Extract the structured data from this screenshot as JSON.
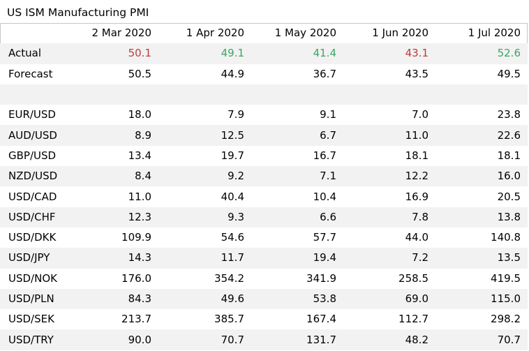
{
  "title": "US ISM Manufacturing PMI",
  "colors": {
    "beat": "#3aa565",
    "miss": "#c0393b",
    "stripe": "#f2f2f2",
    "border": "#c6c6c6"
  },
  "columns": [
    "",
    "2 Mar 2020",
    "1 Apr 2020",
    "1 May 2020",
    "1 Jun 2020",
    "1 Jul 2020"
  ],
  "actual": {
    "label": "Actual",
    "values": [
      "50.1",
      "49.1",
      "41.4",
      "43.1",
      "52.6"
    ],
    "status": [
      "miss",
      "beat",
      "beat",
      "miss",
      "beat"
    ]
  },
  "forecast": {
    "label": "Forecast",
    "values": [
      "50.5",
      "44.9",
      "36.7",
      "43.5",
      "49.5"
    ]
  },
  "pairs": [
    {
      "label": "EUR/USD",
      "values": [
        "18.0",
        "7.9",
        "9.1",
        "7.0",
        "23.8"
      ]
    },
    {
      "label": "AUD/USD",
      "values": [
        "8.9",
        "12.5",
        "6.7",
        "11.0",
        "22.6"
      ]
    },
    {
      "label": "GBP/USD",
      "values": [
        "13.4",
        "19.7",
        "16.7",
        "18.1",
        "18.1"
      ]
    },
    {
      "label": "NZD/USD",
      "values": [
        "8.4",
        "9.2",
        "7.1",
        "12.2",
        "16.0"
      ]
    },
    {
      "label": "USD/CAD",
      "values": [
        "11.0",
        "40.4",
        "10.4",
        "16.9",
        "20.5"
      ]
    },
    {
      "label": "USD/CHF",
      "values": [
        "12.3",
        "9.3",
        "6.6",
        "7.8",
        "13.8"
      ]
    },
    {
      "label": "USD/DKK",
      "values": [
        "109.9",
        "54.6",
        "57.7",
        "44.0",
        "140.8"
      ]
    },
    {
      "label": "USD/JPY",
      "values": [
        "14.3",
        "11.7",
        "19.4",
        "7.2",
        "13.5"
      ]
    },
    {
      "label": "USD/NOK",
      "values": [
        "176.0",
        "354.2",
        "341.9",
        "258.5",
        "419.5"
      ]
    },
    {
      "label": "USD/PLN",
      "values": [
        "84.3",
        "49.6",
        "53.8",
        "69.0",
        "115.0"
      ]
    },
    {
      "label": "USD/SEK",
      "values": [
        "213.7",
        "385.7",
        "167.4",
        "112.7",
        "298.2"
      ]
    },
    {
      "label": "USD/TRY",
      "values": [
        "90.0",
        "70.7",
        "131.7",
        "48.2",
        "70.7"
      ]
    }
  ]
}
